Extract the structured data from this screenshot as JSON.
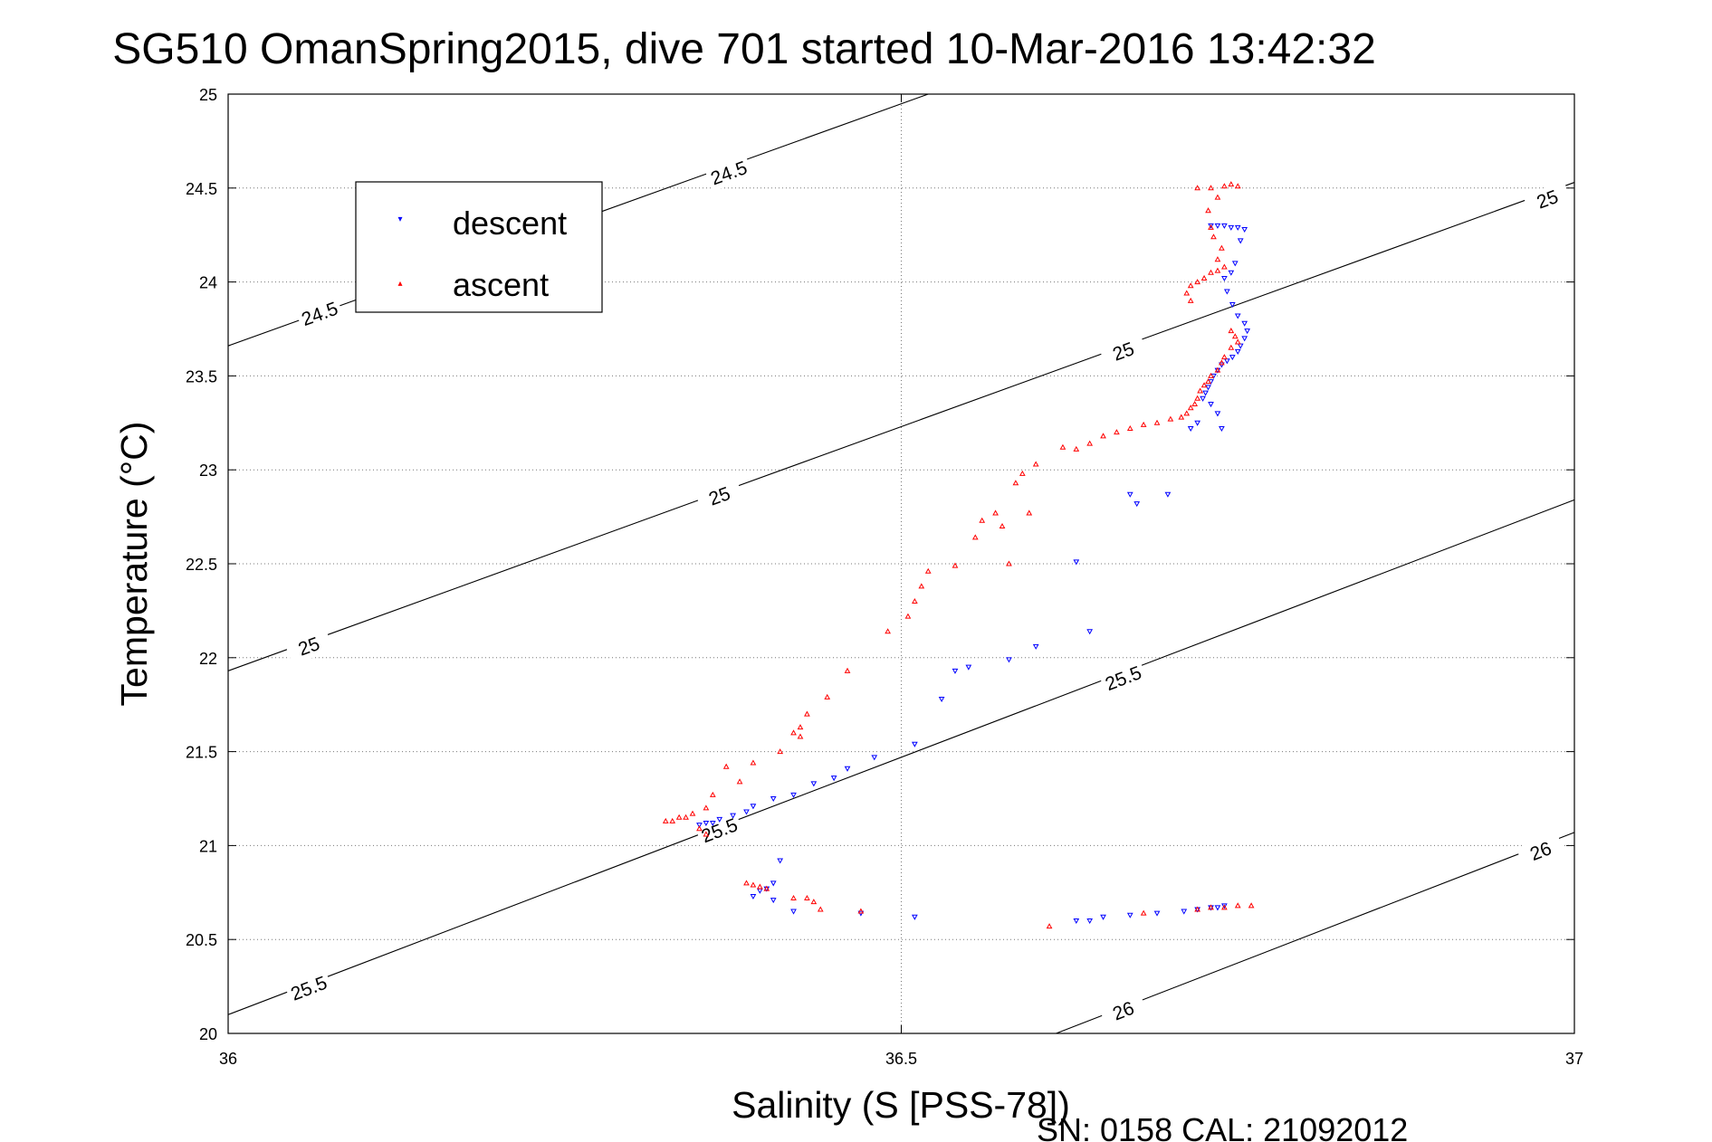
{
  "chart_data": {
    "type": "scatter",
    "title": "SG510 OmanSpring2015, dive 701 started 10-Mar-2016 13:42:32",
    "xlabel": "Salinity (S [PSS-78])",
    "ylabel": "Temperature (°C)",
    "xlim": [
      36,
      37
    ],
    "ylim": [
      20,
      25
    ],
    "xticks": [
      "36",
      "36.5",
      "37"
    ],
    "yticks": [
      "20",
      "20.5",
      "21",
      "21.5",
      "22",
      "22.5",
      "23",
      "23.5",
      "24",
      "24.5",
      "25"
    ],
    "grid": "dotted",
    "legend_position": "top-left",
    "footer": "SN: 0158  CAL: 21092012",
    "contours": [
      {
        "level": 24.5,
        "points": [
          [
            36.0,
            23.66
          ],
          [
            36.52,
            25.0
          ]
        ],
        "labels": [
          {
            "text": "24.5",
            "x": 36.068,
            "y": 23.83
          },
          {
            "text": "24.5",
            "x": 36.372,
            "y": 24.58
          }
        ]
      },
      {
        "level": 25,
        "points": [
          [
            36.0,
            21.93
          ],
          [
            37.0,
            24.53
          ]
        ],
        "labels": [
          {
            "text": "25",
            "x": 36.06,
            "y": 22.06
          },
          {
            "text": "25",
            "x": 36.365,
            "y": 22.86
          },
          {
            "text": "25",
            "x": 36.665,
            "y": 23.63
          },
          {
            "text": "25",
            "x": 36.98,
            "y": 24.44
          }
        ]
      },
      {
        "level": 25.5,
        "points": [
          [
            36.0,
            20.1
          ],
          [
            37.0,
            22.84
          ]
        ],
        "labels": [
          {
            "text": "25.5",
            "x": 36.06,
            "y": 20.24
          },
          {
            "text": "25.5",
            "x": 36.365,
            "y": 21.08
          },
          {
            "text": "25.5",
            "x": 36.665,
            "y": 21.89
          }
        ]
      },
      {
        "level": 26,
        "points": [
          [
            36.615,
            20.0
          ],
          [
            37.0,
            21.07
          ]
        ],
        "labels": [
          {
            "text": "26",
            "x": 36.665,
            "y": 20.12
          },
          {
            "text": "26",
            "x": 36.975,
            "y": 20.97
          }
        ]
      }
    ],
    "series": [
      {
        "name": "descent",
        "color": "#0000ff",
        "marker": "triangle-down",
        "points": [
          [
            36.73,
            24.3
          ],
          [
            36.735,
            24.3
          ],
          [
            36.74,
            24.3
          ],
          [
            36.745,
            24.29
          ],
          [
            36.75,
            24.29
          ],
          [
            36.755,
            24.28
          ],
          [
            36.752,
            24.22
          ],
          [
            36.748,
            24.1
          ],
          [
            36.745,
            24.05
          ],
          [
            36.74,
            24.02
          ],
          [
            36.742,
            23.95
          ],
          [
            36.746,
            23.88
          ],
          [
            36.75,
            23.82
          ],
          [
            36.755,
            23.78
          ],
          [
            36.757,
            23.74
          ],
          [
            36.755,
            23.7
          ],
          [
            36.752,
            23.66
          ],
          [
            36.75,
            23.63
          ],
          [
            36.746,
            23.6
          ],
          [
            36.742,
            23.58
          ],
          [
            36.738,
            23.56
          ],
          [
            36.735,
            23.53
          ],
          [
            36.732,
            23.5
          ],
          [
            36.73,
            23.47
          ],
          [
            36.728,
            23.44
          ],
          [
            36.726,
            23.41
          ],
          [
            36.724,
            23.38
          ],
          [
            36.73,
            23.35
          ],
          [
            36.735,
            23.3
          ],
          [
            36.72,
            23.25
          ],
          [
            36.715,
            23.22
          ],
          [
            36.738,
            23.22
          ],
          [
            36.67,
            22.87
          ],
          [
            36.675,
            22.82
          ],
          [
            36.698,
            22.87
          ],
          [
            36.63,
            22.51
          ],
          [
            36.64,
            22.14
          ],
          [
            36.6,
            22.06
          ],
          [
            36.58,
            21.99
          ],
          [
            36.55,
            21.95
          ],
          [
            36.54,
            21.93
          ],
          [
            36.53,
            21.78
          ],
          [
            36.51,
            21.54
          ],
          [
            36.48,
            21.47
          ],
          [
            36.46,
            21.41
          ],
          [
            36.45,
            21.36
          ],
          [
            36.435,
            21.33
          ],
          [
            36.42,
            21.27
          ],
          [
            36.405,
            21.25
          ],
          [
            36.39,
            21.21
          ],
          [
            36.385,
            21.18
          ],
          [
            36.375,
            21.16
          ],
          [
            36.365,
            21.14
          ],
          [
            36.36,
            21.12
          ],
          [
            36.355,
            21.12
          ],
          [
            36.35,
            21.11
          ],
          [
            36.41,
            20.92
          ],
          [
            36.405,
            20.8
          ],
          [
            36.4,
            20.77
          ],
          [
            36.395,
            20.76
          ],
          [
            36.39,
            20.73
          ],
          [
            36.405,
            20.71
          ],
          [
            36.42,
            20.65
          ],
          [
            36.47,
            20.64
          ],
          [
            36.51,
            20.62
          ],
          [
            36.63,
            20.6
          ],
          [
            36.64,
            20.6
          ],
          [
            36.65,
            20.62
          ],
          [
            36.67,
            20.63
          ],
          [
            36.69,
            20.64
          ],
          [
            36.71,
            20.65
          ],
          [
            36.72,
            20.66
          ],
          [
            36.73,
            20.67
          ],
          [
            36.735,
            20.67
          ],
          [
            36.74,
            20.68
          ]
        ]
      },
      {
        "name": "ascent",
        "color": "#ff0000",
        "marker": "triangle-up",
        "points": [
          [
            36.72,
            24.5
          ],
          [
            36.73,
            24.5
          ],
          [
            36.74,
            24.51
          ],
          [
            36.745,
            24.52
          ],
          [
            36.75,
            24.51
          ],
          [
            36.735,
            24.45
          ],
          [
            36.728,
            24.38
          ],
          [
            36.73,
            24.29
          ],
          [
            36.732,
            24.24
          ],
          [
            36.738,
            24.18
          ],
          [
            36.735,
            24.12
          ],
          [
            36.74,
            24.08
          ],
          [
            36.735,
            24.06
          ],
          [
            36.73,
            24.05
          ],
          [
            36.725,
            24.02
          ],
          [
            36.72,
            24.0
          ],
          [
            36.715,
            23.98
          ],
          [
            36.712,
            23.94
          ],
          [
            36.715,
            23.9
          ],
          [
            36.745,
            23.74
          ],
          [
            36.748,
            23.71
          ],
          [
            36.75,
            23.68
          ],
          [
            36.745,
            23.65
          ],
          [
            36.74,
            23.6
          ],
          [
            36.738,
            23.57
          ],
          [
            36.735,
            23.53
          ],
          [
            36.73,
            23.5
          ],
          [
            36.728,
            23.47
          ],
          [
            36.725,
            23.45
          ],
          [
            36.722,
            23.42
          ],
          [
            36.72,
            23.38
          ],
          [
            36.718,
            23.35
          ],
          [
            36.715,
            23.33
          ],
          [
            36.712,
            23.3
          ],
          [
            36.708,
            23.28
          ],
          [
            36.7,
            23.27
          ],
          [
            36.69,
            23.25
          ],
          [
            36.68,
            23.24
          ],
          [
            36.67,
            23.22
          ],
          [
            36.66,
            23.2
          ],
          [
            36.65,
            23.18
          ],
          [
            36.64,
            23.14
          ],
          [
            36.63,
            23.11
          ],
          [
            36.62,
            23.12
          ],
          [
            36.6,
            23.03
          ],
          [
            36.59,
            22.98
          ],
          [
            36.585,
            22.93
          ],
          [
            36.595,
            22.77
          ],
          [
            36.57,
            22.77
          ],
          [
            36.56,
            22.73
          ],
          [
            36.575,
            22.7
          ],
          [
            36.555,
            22.64
          ],
          [
            36.58,
            22.5
          ],
          [
            36.54,
            22.49
          ],
          [
            36.52,
            22.46
          ],
          [
            36.515,
            22.38
          ],
          [
            36.51,
            22.3
          ],
          [
            36.505,
            22.22
          ],
          [
            36.49,
            22.14
          ],
          [
            36.46,
            21.93
          ],
          [
            36.445,
            21.79
          ],
          [
            36.43,
            21.7
          ],
          [
            36.425,
            21.63
          ],
          [
            36.42,
            21.6
          ],
          [
            36.425,
            21.58
          ],
          [
            36.41,
            21.5
          ],
          [
            36.39,
            21.44
          ],
          [
            36.37,
            21.42
          ],
          [
            36.38,
            21.34
          ],
          [
            36.36,
            21.27
          ],
          [
            36.355,
            21.2
          ],
          [
            36.345,
            21.17
          ],
          [
            36.34,
            21.15
          ],
          [
            36.335,
            21.15
          ],
          [
            36.33,
            21.13
          ],
          [
            36.325,
            21.13
          ],
          [
            36.35,
            21.09
          ],
          [
            36.355,
            21.06
          ],
          [
            36.385,
            20.8
          ],
          [
            36.39,
            20.79
          ],
          [
            36.395,
            20.78
          ],
          [
            36.4,
            20.77
          ],
          [
            36.42,
            20.72
          ],
          [
            36.43,
            20.72
          ],
          [
            36.435,
            20.7
          ],
          [
            36.44,
            20.66
          ],
          [
            36.47,
            20.65
          ],
          [
            36.61,
            20.57
          ],
          [
            36.68,
            20.64
          ],
          [
            36.72,
            20.66
          ],
          [
            36.73,
            20.67
          ],
          [
            36.74,
            20.67
          ],
          [
            36.75,
            20.68
          ],
          [
            36.76,
            20.68
          ]
        ]
      }
    ]
  }
}
